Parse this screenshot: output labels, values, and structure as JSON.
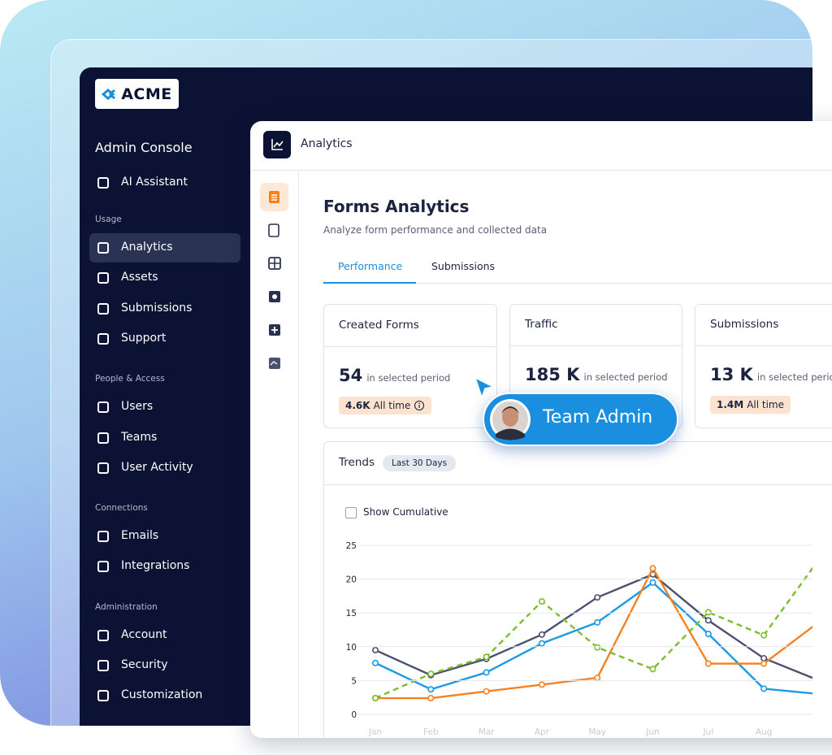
{
  "logo": "ACME",
  "sidebar": {
    "title": "Admin Console",
    "assistant": "AI Assistant",
    "sections": [
      {
        "heading": "Usage",
        "items": [
          "Analytics",
          "Assets",
          "Submissions",
          "Support"
        ]
      },
      {
        "heading": "People & Access",
        "items": [
          "Users",
          "Teams",
          "User Activity"
        ]
      },
      {
        "heading": "Connections",
        "items": [
          "Emails",
          "Integrations"
        ]
      },
      {
        "heading": "Administration",
        "items": [
          "Account",
          "Security",
          "Customization"
        ]
      }
    ]
  },
  "header": {
    "title": "Analytics"
  },
  "page": {
    "title": "Forms Analytics",
    "subtitle": "Analyze form performance and collected data",
    "tabs": [
      "Performance",
      "Submissions"
    ]
  },
  "cards": [
    {
      "title": "Created Forms",
      "value": "54",
      "period": "in selected period",
      "badge_value": "4.6K",
      "badge_label": "All time"
    },
    {
      "title": "Traffic",
      "value": "185 K",
      "period": "in selected period"
    },
    {
      "title": "Submissions",
      "value": "13 K",
      "period": "in selected period",
      "badge_value": "1.4M",
      "badge_label": "All time"
    }
  ],
  "user_badge": "Team Admin",
  "trends": {
    "title": "Trends",
    "range": "Last 30 Days",
    "toggle": "Show Cumulative"
  },
  "chart_data": {
    "type": "line",
    "categories": [
      "Jan",
      "Feb",
      "Mar",
      "Apr",
      "May",
      "Jun",
      "Jul",
      "Aug",
      null
    ],
    "series": [
      {
        "color": "#4a5170",
        "values": [
          9.5,
          5.8,
          8.2,
          11.8,
          17.3,
          20.7,
          13.9,
          8.3,
          5
        ]
      },
      {
        "color": "#1a9be8",
        "values": [
          7.6,
          3.7,
          6.2,
          10.5,
          13.6,
          19.5,
          11.9,
          3.8,
          3
        ]
      },
      {
        "color": "#f5821f",
        "values": [
          2.4,
          2.4,
          3.4,
          4.4,
          5.4,
          21.6,
          7.5,
          7.5,
          13.7
        ]
      },
      {
        "color": "#7cbd2a",
        "style": "dashed",
        "values": [
          2.4,
          6,
          8.5,
          16.7,
          9.9,
          6.7,
          15.1,
          11.7,
          23
        ]
      }
    ],
    "ylim": [
      0,
      25
    ],
    "yticks": [
      0,
      5,
      10,
      15,
      20,
      25
    ],
    "grid": true
  }
}
